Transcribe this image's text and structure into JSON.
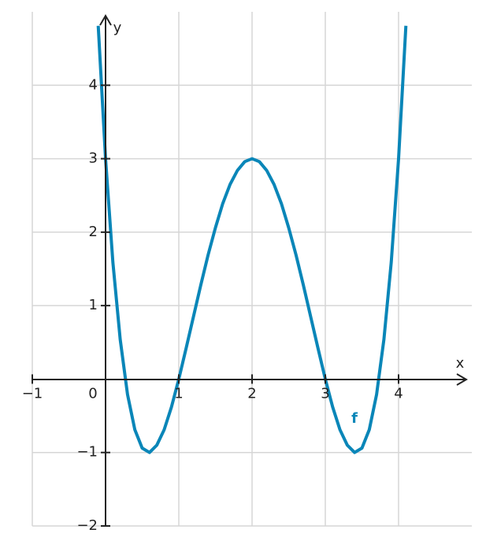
{
  "chart_data": {
    "type": "line",
    "x_label": "x",
    "y_label": "y",
    "x": [
      -0.1,
      0,
      0.1,
      0.2,
      0.3,
      0.4,
      0.5,
      0.6,
      0.7,
      0.8,
      0.9,
      1,
      1.1,
      1.2,
      1.3,
      1.4,
      1.5,
      1.6,
      1.7,
      1.8,
      1.9,
      2,
      2.1,
      2.2,
      2.3,
      2.4,
      2.5,
      2.6,
      2.7,
      2.8,
      2.9,
      3,
      3.1,
      3.2,
      3.3,
      3.4,
      3.5,
      3.6,
      3.7,
      3.8,
      3.9,
      4,
      4.1
    ],
    "series": [
      {
        "name": "f",
        "color": "#0a86b8",
        "values": [
          4.81,
          3,
          1.59,
          0.54,
          -0.21,
          -0.69,
          -0.94,
          -1,
          -0.9,
          -0.69,
          -0.38,
          0,
          0.42,
          0.85,
          1.28,
          1.69,
          2.06,
          2.39,
          2.65,
          2.84,
          2.96,
          3,
          2.96,
          2.84,
          2.65,
          2.39,
          2.06,
          1.69,
          1.28,
          0.85,
          0.42,
          0,
          -0.38,
          -0.69,
          -0.9,
          -1,
          -0.94,
          -0.69,
          -0.21,
          0.54,
          1.59,
          3,
          4.81
        ]
      }
    ],
    "xlim": [
      -1,
      5
    ],
    "ylim": [
      -2,
      5
    ],
    "xticks": [
      {
        "value": -1,
        "label": "−1"
      },
      0,
      1,
      2,
      3,
      4
    ],
    "yticks": [
      {
        "value": -2,
        "label": "−2"
      },
      {
        "value": -1,
        "label": "−1"
      },
      1,
      2,
      3,
      4
    ],
    "grid": true
  }
}
